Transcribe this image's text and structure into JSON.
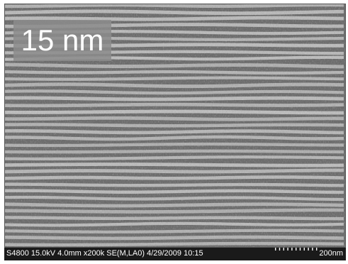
{
  "image": {
    "scale_label": "15 nm",
    "info_bar": {
      "instrument_text": "S4800 15.0kV 4.0mm x200k SE(M,LA0) 4/29/2009 10:15",
      "scale_bar_text": "200nm"
    },
    "colors": {
      "stripe_light": "#bdbdbd",
      "stripe_dark": "#6e6e6e",
      "info_bar_bg": "#1a1a1a"
    }
  }
}
